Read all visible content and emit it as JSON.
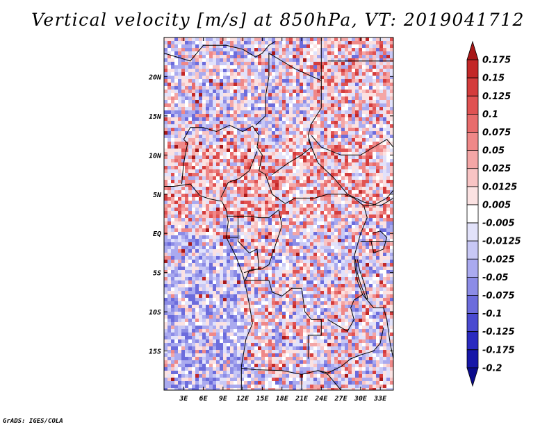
{
  "title": "Vertical velocity [m/s] at 850hPa, VT: 2019041712",
  "credit": "GrADS: IGES/COLA",
  "map": {
    "lon_range": [
      0,
      35
    ],
    "lat_range": [
      -20,
      25
    ],
    "x_ticks": [
      "3E",
      "6E",
      "9E",
      "12E",
      "15E",
      "18E",
      "21E",
      "24E",
      "27E",
      "30E",
      "33E"
    ],
    "x_tick_values": [
      3,
      6,
      9,
      12,
      15,
      18,
      21,
      24,
      27,
      30,
      33
    ],
    "y_ticks": [
      "20N",
      "15N",
      "10N",
      "5N",
      "EQ",
      "5S",
      "10S",
      "15S"
    ],
    "y_tick_values": [
      20,
      15,
      10,
      5,
      0,
      -5,
      -10,
      -15
    ]
  },
  "colorbar": {
    "labels": [
      "0.175",
      "0.15",
      "0.125",
      "0.1",
      "0.075",
      "0.05",
      "0.025",
      "0.0125",
      "0.005",
      "-0.005",
      "-0.0125",
      "-0.025",
      "-0.05",
      "-0.075",
      "-0.1",
      "-0.125",
      "-0.175",
      "-0.2"
    ],
    "colors": [
      "#a81818",
      "#c32828",
      "#d43c3c",
      "#e05252",
      "#e86c6c",
      "#ef8888",
      "#f4a6a6",
      "#f8c4c4",
      "#fbe2e2",
      "#ffffff",
      "#e2e2fa",
      "#c8c8f5",
      "#aaaaef",
      "#8c8ce6",
      "#6c6cdc",
      "#4a4ad0",
      "#2a2ac0",
      "#1616a8",
      "#0a0a8c"
    ]
  }
}
